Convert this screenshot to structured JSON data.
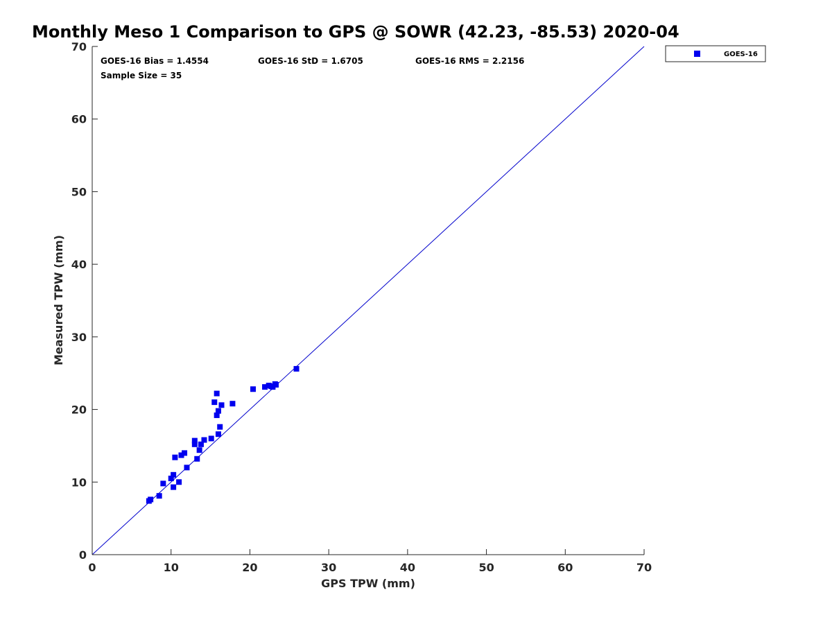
{
  "chart_data": {
    "type": "scatter",
    "title": "Monthly Meso 1 Comparison to GPS @ SOWR (42.23, -85.53) 2020-04",
    "xlabel": "GPS TPW (mm)",
    "ylabel": "Measured TPW (mm)",
    "xlim": [
      0,
      70
    ],
    "ylim": [
      0,
      70
    ],
    "xticks": [
      "0",
      "10",
      "20",
      "30",
      "40",
      "50",
      "60",
      "70"
    ],
    "yticks": [
      "0",
      "10",
      "20",
      "30",
      "40",
      "50",
      "60",
      "70"
    ],
    "grid": false,
    "legend_position": "outside-top-right",
    "reference_line": {
      "type": "one-to-one",
      "color": "#0000cc"
    },
    "stats": {
      "bias": "GOES-16 Bias = 1.4554",
      "std": "GOES-16 StD = 1.6705",
      "rms": "GOES-16 RMS = 2.2156",
      "sample": "Sample Size = 35"
    },
    "series": [
      {
        "name": "GOES-16",
        "color": "#0000ee",
        "marker": "square",
        "points": [
          [
            7.2,
            7.4
          ],
          [
            7.4,
            7.6
          ],
          [
            8.5,
            8.1
          ],
          [
            9.0,
            9.8
          ],
          [
            10.0,
            10.5
          ],
          [
            10.3,
            11.0
          ],
          [
            10.3,
            9.3
          ],
          [
            10.5,
            13.4
          ],
          [
            11.0,
            10.0
          ],
          [
            11.3,
            13.7
          ],
          [
            11.7,
            14.0
          ],
          [
            12.0,
            12.0
          ],
          [
            13.0,
            15.2
          ],
          [
            13.0,
            15.7
          ],
          [
            13.3,
            13.2
          ],
          [
            13.6,
            14.4
          ],
          [
            13.8,
            15.2
          ],
          [
            14.2,
            15.8
          ],
          [
            15.1,
            16.0
          ],
          [
            15.5,
            21.0
          ],
          [
            15.8,
            22.2
          ],
          [
            15.8,
            19.2
          ],
          [
            16.0,
            16.6
          ],
          [
            16.0,
            19.8
          ],
          [
            16.2,
            17.6
          ],
          [
            16.4,
            20.6
          ],
          [
            17.8,
            20.8
          ],
          [
            20.4,
            22.8
          ],
          [
            21.9,
            23.1
          ],
          [
            22.4,
            23.3
          ],
          [
            22.7,
            23.2
          ],
          [
            22.9,
            23.1
          ],
          [
            23.2,
            23.5
          ],
          [
            23.3,
            23.4
          ],
          [
            25.9,
            25.6
          ]
        ]
      }
    ]
  }
}
